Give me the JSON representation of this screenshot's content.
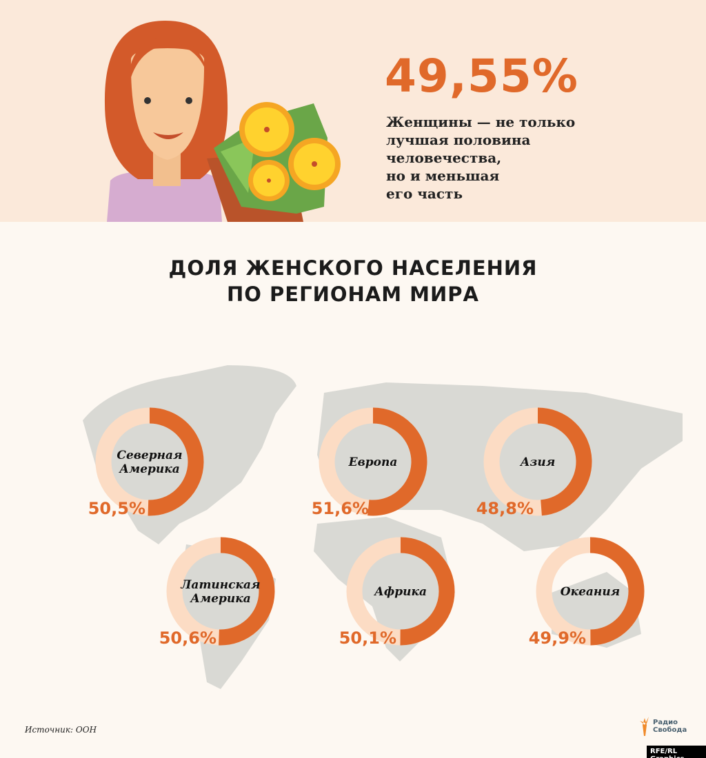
{
  "header": {
    "headline": "49,55%",
    "subtitle": [
      "Женщины — не только",
      "лучшая половина",
      "человечества,",
      "но и меньшая",
      "его часть"
    ]
  },
  "title": [
    "ДОЛЯ ЖЕНСКОГО НАСЕЛЕНИЯ",
    "ПО РЕГИОНАМ МИРА"
  ],
  "chart_data": {
    "type": "pie",
    "subtype": "donut",
    "series": [
      {
        "name": "Северная Америка",
        "lines": [
          "Северная",
          "Америка"
        ],
        "value": 50.5,
        "label": "50,5%"
      },
      {
        "name": "Европа",
        "lines": [
          "Европа"
        ],
        "value": 51.6,
        "label": "51,6%"
      },
      {
        "name": "Азия",
        "lines": [
          "Азия"
        ],
        "value": 48.8,
        "label": "48,8%"
      },
      {
        "name": "Латинская Америка",
        "lines": [
          "Латинская",
          "Америка"
        ],
        "value": 50.6,
        "label": "50,6%"
      },
      {
        "name": "Африка",
        "lines": [
          "Африка"
        ],
        "value": 50.1,
        "label": "50,1%"
      },
      {
        "name": "Океания",
        "lines": [
          "Океания"
        ],
        "value": 49.9,
        "label": "49,9%"
      }
    ],
    "colors": {
      "female": "#e0692a",
      "rest": "#fcdcc4",
      "map": "#d9d9d4"
    }
  },
  "footer": {
    "source": "Источник: ООН",
    "logo": [
      "Радио",
      "Свобода"
    ],
    "credit": "RFE/RL Graphics"
  }
}
